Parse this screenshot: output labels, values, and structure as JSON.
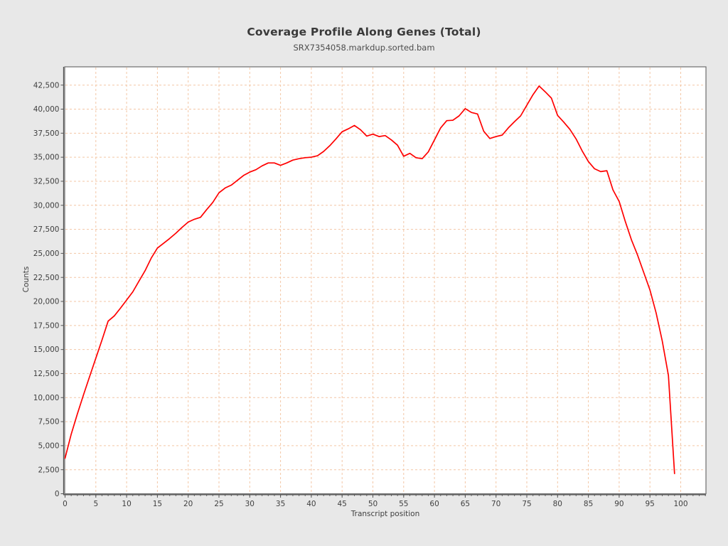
{
  "ui": {
    "background_color": "#e8e8e8",
    "plot_background_color": "#ffffff",
    "plot_border_color": "#6e6e6e",
    "axis_color": "#545454",
    "grid_color": "#f3c6a5",
    "tick_label_color": "#3f3f3f"
  },
  "chart_data": {
    "type": "line",
    "title": "Coverage Profile Along Genes (Total)",
    "subtitle": "SRX7354058.markdup.sorted.bam",
    "xlabel": "Transcript position",
    "ylabel": "Counts",
    "legend_position": "none",
    "grid": "dashed-orange, major gridlines only",
    "line_color": "#ff0000",
    "xlim": [
      0,
      104
    ],
    "ylim": [
      0,
      44400
    ],
    "x_ticks": [
      0,
      5,
      10,
      15,
      20,
      25,
      30,
      35,
      40,
      45,
      50,
      55,
      60,
      65,
      70,
      75,
      80,
      85,
      90,
      95,
      100
    ],
    "y_ticks": [
      0,
      2500,
      5000,
      7500,
      10000,
      12500,
      15000,
      17500,
      20000,
      22500,
      25000,
      27500,
      30000,
      32500,
      35000,
      37500,
      40000,
      42500
    ],
    "x": [
      0,
      1,
      2,
      3,
      4,
      5,
      6,
      7,
      8,
      9,
      10,
      11,
      12,
      13,
      14,
      15,
      16,
      17,
      18,
      19,
      20,
      21,
      22,
      23,
      24,
      25,
      26,
      27,
      28,
      29,
      30,
      31,
      32,
      33,
      34,
      35,
      36,
      37,
      38,
      39,
      40,
      41,
      42,
      43,
      44,
      45,
      46,
      47,
      48,
      49,
      50,
      51,
      52,
      53,
      54,
      55,
      56,
      57,
      58,
      59,
      60,
      61,
      62,
      63,
      64,
      65,
      66,
      67,
      68,
      69,
      70,
      71,
      72,
      73,
      74,
      75,
      76,
      77,
      78,
      79,
      80,
      81,
      82,
      83,
      84,
      85,
      86,
      87,
      88,
      89,
      90,
      91,
      92,
      93,
      94,
      95,
      96,
      97,
      98,
      99
    ],
    "series": [
      {
        "name": "SRX7354058.markdup.sorted.bam",
        "values": [
          3700,
          6200,
          8300,
          10300,
          12200,
          14100,
          16000,
          17950,
          18500,
          19300,
          20150,
          21000,
          22100,
          23200,
          24500,
          25550,
          26050,
          26550,
          27100,
          27700,
          28250,
          28550,
          28750,
          29550,
          30300,
          31300,
          31800,
          32100,
          32600,
          33100,
          33450,
          33700,
          34100,
          34400,
          34400,
          34150,
          34400,
          34700,
          34850,
          34950,
          35000,
          35150,
          35600,
          36200,
          36900,
          37650,
          37950,
          38300,
          37850,
          37200,
          37400,
          37150,
          37250,
          36800,
          36250,
          35100,
          35400,
          34950,
          34850,
          35550,
          36800,
          38050,
          38800,
          38850,
          39300,
          40050,
          39650,
          39500,
          37700,
          36950,
          37150,
          37300,
          38050,
          38700,
          39300,
          40400,
          41500,
          42400,
          41800,
          41150,
          39350,
          38650,
          37900,
          36900,
          35650,
          34550,
          33800,
          33500,
          33600,
          31600,
          30400,
          28300,
          26400,
          24800,
          23000,
          21200,
          18800,
          15900,
          12300,
          2100
        ]
      }
    ]
  }
}
